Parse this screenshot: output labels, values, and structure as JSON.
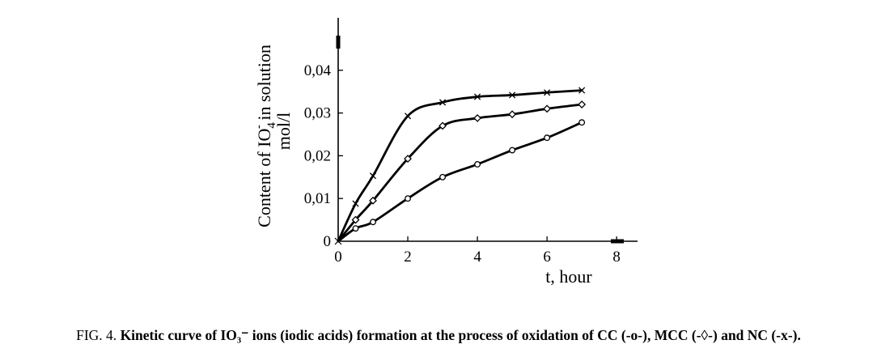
{
  "caption": {
    "prefix": "FIG. 4. ",
    "text": "Kinetic curve of IO₃⁻ ions (iodic acids) formation at the process of oxidation of CC (-o-), MCC (-◊-) and NC (-x-)."
  },
  "chart_data": {
    "type": "line",
    "xlabel": "t, hour",
    "ylabel": {
      "line1_main": "Content of IO",
      "line1_sub": "4",
      "line1_sup": "-",
      "line1_rest": " in solution",
      "line2": "mol/l"
    },
    "x_ticks": [
      "0",
      "2",
      "4",
      "6",
      "8"
    ],
    "y_ticks": [
      "0",
      "0,01",
      "0,02",
      "0,03",
      "0,04"
    ],
    "xlim": [
      0,
      8.6
    ],
    "ylim": [
      0,
      0.05
    ],
    "grid": false,
    "series": [
      {
        "marker": "circle",
        "x": [
          0,
          0.5,
          1,
          2,
          3,
          4,
          5,
          6,
          7
        ],
        "y": [
          0,
          0.003,
          0.0045,
          0.01,
          0.015,
          0.018,
          0.0213,
          0.0242,
          0.0278
        ]
      },
      {
        "marker": "diamond",
        "x": [
          0,
          0.5,
          1,
          2,
          3,
          4,
          5,
          6,
          7
        ],
        "y": [
          0,
          0.005,
          0.0095,
          0.0193,
          0.027,
          0.0288,
          0.0297,
          0.031,
          0.032
        ]
      },
      {
        "marker": "x",
        "x": [
          0,
          0.5,
          1,
          2,
          3,
          4,
          5,
          6,
          7
        ],
        "y": [
          0,
          0.0088,
          0.0153,
          0.0293,
          0.0325,
          0.0338,
          0.0342,
          0.0348,
          0.0353
        ]
      }
    ]
  }
}
